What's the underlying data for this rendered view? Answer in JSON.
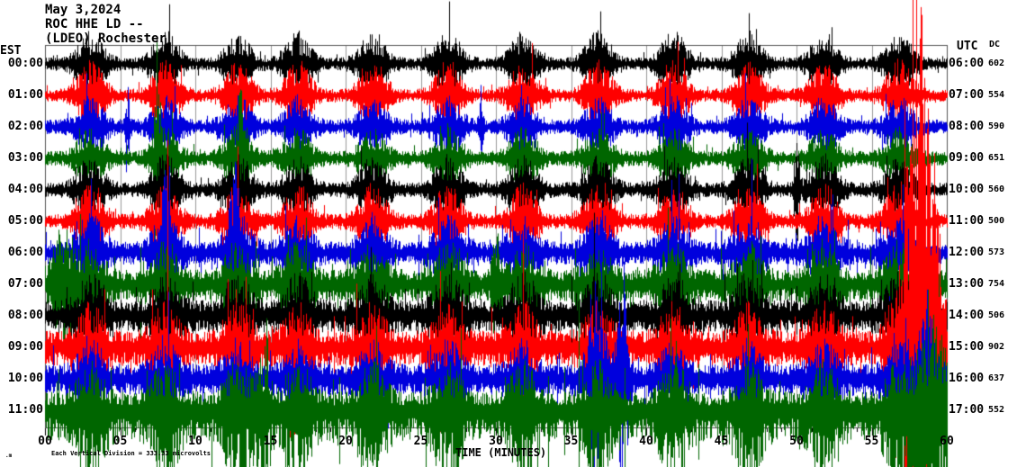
{
  "header": {
    "date": "May 3,2024",
    "station": "ROC HHE LD --",
    "network": "(LDEO) Rochester"
  },
  "axes": {
    "left_label": "EST",
    "right_label": "UTC",
    "dc_label": "DC",
    "time_axis_label": "TIME (MINUTES)",
    "x_ticks": [
      "00",
      "05",
      "10",
      "15",
      "20",
      "25",
      "30",
      "35",
      "40",
      "45",
      "50",
      "55",
      "60"
    ]
  },
  "footer": {
    "scale_note": "Each Vertical Division = 333.33 microvolts",
    "corner_mark": ".m"
  },
  "colors": {
    "background": "#ffffff",
    "text": "#000000",
    "grid": "#999999",
    "border": "#555555",
    "trace_black": "#000000",
    "trace_red": "#ff0000",
    "trace_blue": "#0000dd",
    "trace_green": "#006600"
  },
  "chart_data": {
    "type": "line",
    "subtype": "helicorder-seismogram",
    "title": "ROC HHE LD -- (LDEO) Rochester, May 3,2024",
    "xlabel": "TIME (MINUTES)",
    "x_range_minutes": [
      0,
      60
    ],
    "minutes_per_row": 60,
    "row_interval": "1 hour",
    "scale_note": "Each Vertical Division = 333.33 microvolts",
    "burst_centers_min": [
      3,
      8,
      12.8,
      16.8,
      21.8,
      26.8,
      31.8,
      36.8,
      41.8,
      46.8,
      51.8,
      56.8
    ],
    "burst_width_min": 1.0,
    "rows": [
      {
        "est": "00:00",
        "utc": "06:00",
        "dc": "602",
        "color": "#000000",
        "base": 6,
        "burst_gain": 4.5,
        "down_bias": 1.0,
        "events": []
      },
      {
        "est": "01:00",
        "utc": "07:00",
        "dc": "554",
        "color": "#ff0000",
        "base": 6,
        "burst_gain": 5.0,
        "down_bias": 1.0,
        "events": []
      },
      {
        "est": "02:00",
        "utc": "08:00",
        "dc": "590",
        "color": "#0000dd",
        "base": 7,
        "burst_gain": 3.5,
        "down_bias": 1.0,
        "events": [
          {
            "min": 5.5,
            "w": 0.15,
            "amp": 30
          },
          {
            "min": 29.0,
            "w": 0.15,
            "amp": 35
          }
        ]
      },
      {
        "est": "03:00",
        "utc": "09:00",
        "dc": "651",
        "color": "#006600",
        "base": 7,
        "burst_gain": 3.5,
        "down_bias": 1.0,
        "events": [
          {
            "min": 7.5,
            "w": 0.3,
            "amp": 45
          },
          {
            "min": 13.0,
            "w": 0.3,
            "amp": 40
          }
        ]
      },
      {
        "est": "04:00",
        "utc": "10:00",
        "dc": "560",
        "color": "#000000",
        "base": 7,
        "burst_gain": 4.0,
        "down_bias": 1.0,
        "events": [
          {
            "min": 50.0,
            "w": 0.2,
            "amp": 45
          }
        ]
      },
      {
        "est": "05:00",
        "utc": "11:00",
        "dc": "500",
        "color": "#ff0000",
        "base": 7,
        "burst_gain": 4.5,
        "down_bias": 1.0,
        "events": []
      },
      {
        "est": "06:00",
        "utc": "12:00",
        "dc": "573",
        "color": "#0000dd",
        "base": 11,
        "burst_gain": 2.6,
        "down_bias": 1.0,
        "events": [
          {
            "min": 8.0,
            "w": 0.3,
            "amp": 50
          },
          {
            "min": 12.6,
            "w": 0.4,
            "amp": 60
          }
        ]
      },
      {
        "est": "07:00",
        "utc": "13:00",
        "dc": "754",
        "color": "#006600",
        "base": 14,
        "burst_gain": 2.2,
        "down_bias": 1.15,
        "events": [
          {
            "min": 1.2,
            "w": 0.8,
            "amp": 45
          },
          {
            "min": 30.0,
            "w": 0.3,
            "amp": 40
          }
        ]
      },
      {
        "est": "08:00",
        "utc": "14:00",
        "dc": "506",
        "color": "#000000",
        "base": 15,
        "burst_gain": 2.0,
        "down_bias": 1.0,
        "events": []
      },
      {
        "est": "09:00",
        "utc": "15:00",
        "dc": "902",
        "color": "#ff0000",
        "base": 16,
        "burst_gain": 1.9,
        "down_bias": 1.1,
        "events": [
          {
            "min": 58.3,
            "w": 1.1,
            "amp": 330
          }
        ]
      },
      {
        "est": "10:00",
        "utc": "16:00",
        "dc": "637",
        "color": "#0000dd",
        "base": 14,
        "burst_gain": 1.9,
        "down_bias": 1.1,
        "events": [
          {
            "min": 36.6,
            "w": 0.5,
            "amp": 70
          },
          {
            "min": 38.4,
            "w": 0.4,
            "amp": 95
          },
          {
            "min": 58.6,
            "w": 0.8,
            "amp": 60
          }
        ]
      },
      {
        "est": "11:00",
        "utc": "17:00",
        "dc": "552",
        "color": "#006600",
        "base": 18,
        "burst_gain": 1.8,
        "down_bias": 1.6,
        "events": [
          {
            "min": 14.5,
            "w": 0.5,
            "amp": 45
          },
          {
            "min": 59.0,
            "w": 1.2,
            "amp": 75
          }
        ]
      }
    ]
  }
}
